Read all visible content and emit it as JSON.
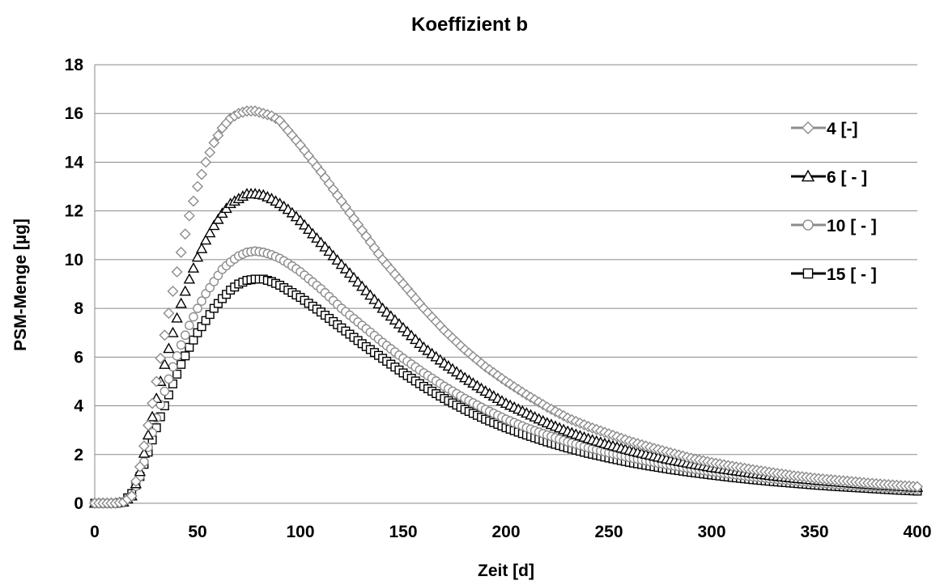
{
  "chart_data": {
    "type": "scatter",
    "title": "Koeffizient  b",
    "xlabel": "Zeit [d]",
    "ylabel": "PSM-Menge [µg]",
    "xlim": [
      0,
      400
    ],
    "ylim": [
      0,
      18
    ],
    "x_ticks": [
      "0",
      "50",
      "100",
      "150",
      "200",
      "250",
      "300",
      "350",
      "400"
    ],
    "y_ticks": [
      "0",
      "2",
      "4",
      "6",
      "8",
      "10",
      "12",
      "14",
      "16",
      "18"
    ],
    "grid": "horizontal",
    "legend_position": "right",
    "x_step": 2,
    "series": [
      {
        "name": "4 [-]",
        "marker": "diamond",
        "color": "#8c8c8c",
        "points": [
          [
            0,
            0
          ],
          [
            10,
            0
          ],
          [
            14,
            0.05
          ],
          [
            18,
            0.3
          ],
          [
            22,
            1.5
          ],
          [
            26,
            3.2
          ],
          [
            30,
            5.0
          ],
          [
            34,
            6.9
          ],
          [
            38,
            8.7
          ],
          [
            42,
            10.3
          ],
          [
            46,
            11.8
          ],
          [
            50,
            13.0
          ],
          [
            54,
            14.0
          ],
          [
            58,
            14.8
          ],
          [
            62,
            15.4
          ],
          [
            66,
            15.8
          ],
          [
            70,
            16.0
          ],
          [
            74,
            16.1
          ],
          [
            78,
            16.1
          ],
          [
            82,
            16.0
          ],
          [
            86,
            15.9
          ],
          [
            90,
            15.7
          ],
          [
            95,
            15.2
          ],
          [
            100,
            14.7
          ],
          [
            110,
            13.6
          ],
          [
            120,
            12.4
          ],
          [
            130,
            11.2
          ],
          [
            140,
            10.0
          ],
          [
            150,
            9.0
          ],
          [
            160,
            8.0
          ],
          [
            170,
            7.1
          ],
          [
            180,
            6.3
          ],
          [
            190,
            5.6
          ],
          [
            200,
            5.0
          ],
          [
            210,
            4.45
          ],
          [
            220,
            3.95
          ],
          [
            230,
            3.5
          ],
          [
            240,
            3.15
          ],
          [
            250,
            2.85
          ],
          [
            260,
            2.55
          ],
          [
            270,
            2.3
          ],
          [
            280,
            2.07
          ],
          [
            290,
            1.85
          ],
          [
            300,
            1.67
          ],
          [
            310,
            1.52
          ],
          [
            320,
            1.38
          ],
          [
            330,
            1.25
          ],
          [
            340,
            1.13
          ],
          [
            350,
            1.03
          ],
          [
            360,
            0.95
          ],
          [
            370,
            0.88
          ],
          [
            380,
            0.8
          ],
          [
            390,
            0.74
          ],
          [
            400,
            0.68
          ]
        ]
      },
      {
        "name": "6 [ - ]",
        "marker": "triangle",
        "color": "#000000",
        "points": [
          [
            0,
            0
          ],
          [
            10,
            0
          ],
          [
            14,
            0.05
          ],
          [
            18,
            0.3
          ],
          [
            22,
            1.3
          ],
          [
            26,
            2.8
          ],
          [
            30,
            4.3
          ],
          [
            34,
            5.7
          ],
          [
            38,
            7.0
          ],
          [
            42,
            8.2
          ],
          [
            46,
            9.2
          ],
          [
            50,
            10.1
          ],
          [
            54,
            10.8
          ],
          [
            58,
            11.4
          ],
          [
            62,
            11.9
          ],
          [
            66,
            12.3
          ],
          [
            70,
            12.5
          ],
          [
            74,
            12.7
          ],
          [
            78,
            12.7
          ],
          [
            82,
            12.65
          ],
          [
            86,
            12.5
          ],
          [
            90,
            12.3
          ],
          [
            95,
            12.0
          ],
          [
            100,
            11.6
          ],
          [
            110,
            10.7
          ],
          [
            120,
            9.8
          ],
          [
            130,
            8.9
          ],
          [
            140,
            8.0
          ],
          [
            150,
            7.2
          ],
          [
            160,
            6.4
          ],
          [
            170,
            5.75
          ],
          [
            180,
            5.15
          ],
          [
            190,
            4.6
          ],
          [
            200,
            4.1
          ],
          [
            210,
            3.7
          ],
          [
            220,
            3.3
          ],
          [
            230,
            2.95
          ],
          [
            240,
            2.65
          ],
          [
            250,
            2.4
          ],
          [
            260,
            2.17
          ],
          [
            270,
            1.97
          ],
          [
            280,
            1.78
          ],
          [
            290,
            1.62
          ],
          [
            300,
            1.47
          ],
          [
            310,
            1.35
          ],
          [
            320,
            1.23
          ],
          [
            330,
            1.12
          ],
          [
            340,
            1.03
          ],
          [
            350,
            0.95
          ],
          [
            360,
            0.88
          ],
          [
            370,
            0.81
          ],
          [
            380,
            0.75
          ],
          [
            390,
            0.7
          ],
          [
            400,
            0.65
          ]
        ]
      },
      {
        "name": "10 [ - ]",
        "marker": "circle",
        "color": "#8c8c8c",
        "points": [
          [
            0,
            0
          ],
          [
            10,
            0
          ],
          [
            14,
            0.05
          ],
          [
            18,
            0.3
          ],
          [
            22,
            1.1
          ],
          [
            26,
            2.3
          ],
          [
            30,
            3.5
          ],
          [
            34,
            4.6
          ],
          [
            38,
            5.6
          ],
          [
            42,
            6.5
          ],
          [
            46,
            7.3
          ],
          [
            50,
            8.0
          ],
          [
            54,
            8.6
          ],
          [
            58,
            9.1
          ],
          [
            62,
            9.6
          ],
          [
            66,
            9.9
          ],
          [
            70,
            10.15
          ],
          [
            74,
            10.3
          ],
          [
            78,
            10.35
          ],
          [
            82,
            10.3
          ],
          [
            86,
            10.2
          ],
          [
            90,
            10.05
          ],
          [
            95,
            9.8
          ],
          [
            100,
            9.5
          ],
          [
            110,
            8.8
          ],
          [
            120,
            8.0
          ],
          [
            130,
            7.3
          ],
          [
            140,
            6.6
          ],
          [
            150,
            5.95
          ],
          [
            160,
            5.35
          ],
          [
            170,
            4.8
          ],
          [
            180,
            4.3
          ],
          [
            190,
            3.85
          ],
          [
            200,
            3.45
          ],
          [
            210,
            3.1
          ],
          [
            220,
            2.8
          ],
          [
            230,
            2.52
          ],
          [
            240,
            2.28
          ],
          [
            250,
            2.07
          ],
          [
            260,
            1.88
          ],
          [
            270,
            1.71
          ],
          [
            280,
            1.56
          ],
          [
            290,
            1.42
          ],
          [
            300,
            1.3
          ],
          [
            310,
            1.19
          ],
          [
            320,
            1.09
          ],
          [
            330,
            1.0
          ],
          [
            340,
            0.92
          ],
          [
            350,
            0.85
          ],
          [
            360,
            0.78
          ],
          [
            370,
            0.72
          ],
          [
            380,
            0.67
          ],
          [
            390,
            0.62
          ],
          [
            400,
            0.58
          ]
        ]
      },
      {
        "name": "15 [ - ]",
        "marker": "square",
        "color": "#000000",
        "points": [
          [
            0,
            0
          ],
          [
            10,
            0
          ],
          [
            14,
            0.05
          ],
          [
            18,
            0.4
          ],
          [
            22,
            1.1
          ],
          [
            26,
            2.1
          ],
          [
            30,
            3.1
          ],
          [
            34,
            4.0
          ],
          [
            38,
            4.9
          ],
          [
            42,
            5.7
          ],
          [
            46,
            6.4
          ],
          [
            50,
            7.0
          ],
          [
            54,
            7.5
          ],
          [
            58,
            8.0
          ],
          [
            62,
            8.4
          ],
          [
            66,
            8.75
          ],
          [
            70,
            9.0
          ],
          [
            74,
            9.15
          ],
          [
            78,
            9.2
          ],
          [
            82,
            9.2
          ],
          [
            86,
            9.1
          ],
          [
            90,
            8.95
          ],
          [
            95,
            8.7
          ],
          [
            100,
            8.45
          ],
          [
            110,
            7.85
          ],
          [
            120,
            7.2
          ],
          [
            130,
            6.55
          ],
          [
            140,
            5.95
          ],
          [
            150,
            5.35
          ],
          [
            160,
            4.8
          ],
          [
            170,
            4.3
          ],
          [
            180,
            3.85
          ],
          [
            190,
            3.45
          ],
          [
            200,
            3.1
          ],
          [
            210,
            2.8
          ],
          [
            220,
            2.52
          ],
          [
            230,
            2.27
          ],
          [
            240,
            2.05
          ],
          [
            250,
            1.86
          ],
          [
            260,
            1.68
          ],
          [
            270,
            1.53
          ],
          [
            280,
            1.39
          ],
          [
            290,
            1.27
          ],
          [
            300,
            1.16
          ],
          [
            310,
            1.06
          ],
          [
            320,
            0.97
          ],
          [
            330,
            0.89
          ],
          [
            340,
            0.82
          ],
          [
            350,
            0.75
          ],
          [
            360,
            0.69
          ],
          [
            370,
            0.64
          ],
          [
            380,
            0.59
          ],
          [
            390,
            0.54
          ],
          [
            400,
            0.5
          ]
        ]
      }
    ]
  }
}
